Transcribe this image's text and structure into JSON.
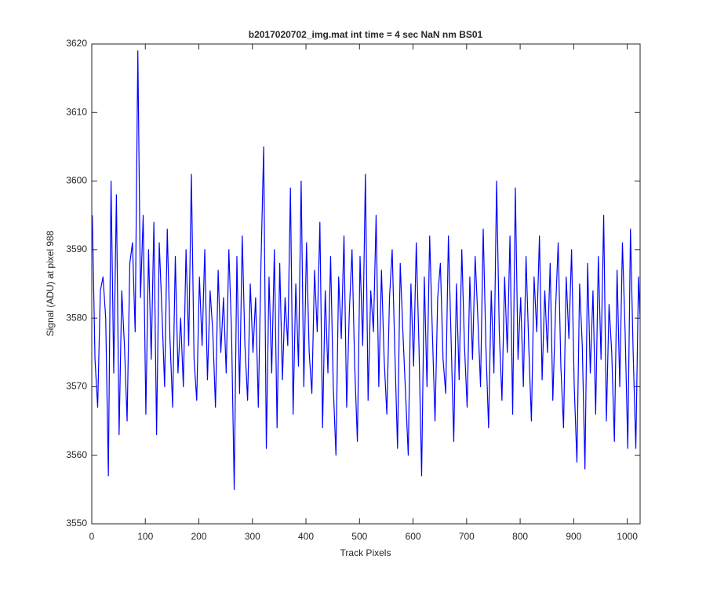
{
  "chart_data": {
    "type": "line",
    "title": "b2017020702_img.mat int time = 4 sec  NaN nm BS01",
    "xlabel": "Track Pixels",
    "ylabel": "Signal (ADU) at pixel 988",
    "xlim": [
      0,
      1024
    ],
    "ylim": [
      3550,
      3620
    ],
    "xticks": [
      0,
      100,
      200,
      300,
      400,
      500,
      600,
      700,
      800,
      900,
      1000
    ],
    "yticks": [
      3550,
      3560,
      3570,
      3580,
      3590,
      3600,
      3610,
      3620
    ],
    "grid": false,
    "x": [
      1,
      6,
      11,
      16,
      21,
      26,
      31,
      36,
      41,
      46,
      51,
      56,
      61,
      66,
      71,
      76,
      81,
      86,
      91,
      96,
      101,
      106,
      111,
      116,
      121,
      126,
      131,
      136,
      141,
      146,
      151,
      156,
      161,
      166,
      171,
      176,
      181,
      186,
      191,
      196,
      201,
      206,
      211,
      216,
      221,
      226,
      231,
      236,
      241,
      246,
      251,
      256,
      261,
      266,
      271,
      276,
      281,
      286,
      291,
      296,
      301,
      306,
      311,
      316,
      321,
      326,
      331,
      336,
      341,
      346,
      351,
      356,
      361,
      366,
      371,
      376,
      381,
      386,
      391,
      396,
      401,
      406,
      411,
      416,
      421,
      426,
      431,
      436,
      441,
      446,
      451,
      456,
      461,
      466,
      471,
      476,
      481,
      486,
      491,
      496,
      501,
      506,
      511,
      516,
      521,
      526,
      531,
      536,
      541,
      546,
      551,
      556,
      561,
      566,
      571,
      576,
      581,
      586,
      591,
      596,
      601,
      606,
      611,
      616,
      621,
      626,
      631,
      636,
      641,
      646,
      651,
      656,
      661,
      666,
      671,
      676,
      681,
      686,
      691,
      696,
      701,
      706,
      711,
      716,
      721,
      726,
      731,
      736,
      741,
      746,
      751,
      756,
      761,
      766,
      771,
      776,
      781,
      786,
      791,
      796,
      801,
      806,
      811,
      816,
      821,
      826,
      831,
      836,
      841,
      846,
      851,
      856,
      861,
      866,
      871,
      876,
      881,
      886,
      891,
      896,
      901,
      906,
      911,
      916,
      921,
      926,
      931,
      936,
      941,
      946,
      951,
      956,
      961,
      966,
      971,
      976,
      981,
      986,
      991,
      996,
      1001,
      1006,
      1011,
      1016,
      1021,
      1024
    ],
    "series": [
      {
        "name": "Signal",
        "color": "#0000ff",
        "values": [
          3595,
          3574,
          3567,
          3584,
          3586,
          3580,
          3557,
          3600,
          3572,
          3598,
          3563,
          3584,
          3576,
          3565,
          3588,
          3591,
          3578,
          3619,
          3583,
          3595,
          3566,
          3590,
          3574,
          3594,
          3563,
          3591,
          3581,
          3570,
          3593,
          3577,
          3567,
          3589,
          3572,
          3580,
          3570,
          3590,
          3576,
          3601,
          3574,
          3568,
          3586,
          3576,
          3590,
          3571,
          3584,
          3578,
          3567,
          3587,
          3575,
          3583,
          3572,
          3590,
          3578,
          3555,
          3589,
          3569,
          3592,
          3576,
          3568,
          3585,
          3575,
          3583,
          3567,
          3588,
          3605,
          3561,
          3586,
          3572,
          3590,
          3564,
          3588,
          3571,
          3583,
          3576,
          3599,
          3566,
          3585,
          3573,
          3600,
          3570,
          3591,
          3575,
          3569,
          3587,
          3578,
          3594,
          3564,
          3584,
          3572,
          3589,
          3570,
          3560,
          3586,
          3577,
          3592,
          3567,
          3581,
          3590,
          3573,
          3562,
          3589,
          3576,
          3601,
          3568,
          3584,
          3578,
          3595,
          3570,
          3587,
          3574,
          3566,
          3583,
          3590,
          3575,
          3561,
          3588,
          3578,
          3569,
          3560,
          3585,
          3573,
          3591,
          3576,
          3557,
          3586,
          3570,
          3592,
          3578,
          3565,
          3583,
          3588,
          3574,
          3569,
          3592,
          3577,
          3562,
          3585,
          3571,
          3590,
          3576,
          3567,
          3586,
          3574,
          3589,
          3580,
          3570,
          3593,
          3576,
          3564,
          3584,
          3572,
          3600,
          3578,
          3568,
          3586,
          3575,
          3592,
          3566,
          3599,
          3574,
          3583,
          3570,
          3589,
          3576,
          3565,
          3586,
          3578,
          3592,
          3571,
          3584,
          3575,
          3588,
          3568,
          3581,
          3591,
          3573,
          3564,
          3586,
          3577,
          3590,
          3570,
          3559,
          3585,
          3576,
          3558,
          3588,
          3572,
          3584,
          3566,
          3589,
          3574,
          3595,
          3565,
          3582,
          3575,
          3562,
          3587,
          3570,
          3591,
          3578,
          3561,
          3593,
          3575,
          3561,
          3586,
          3580
        ]
      }
    ]
  }
}
